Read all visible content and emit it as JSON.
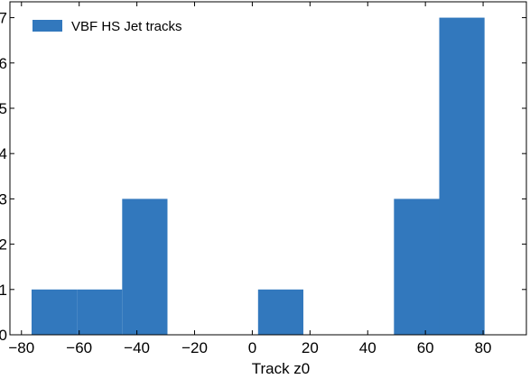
{
  "chart_data": {
    "type": "bar",
    "subtype": "histogram",
    "title": "",
    "xlabel": "Track z0",
    "ylabel": "",
    "bin_edges": [
      -76.5,
      -60.8,
      -45.1,
      -29.4,
      -13.7,
      2.0,
      17.7,
      33.4,
      49.1,
      64.8,
      80.5
    ],
    "series": [
      {
        "name": "VBF HS Jet tracks",
        "color": "#3278bd",
        "counts": [
          1,
          1,
          3,
          0,
          0,
          1,
          0,
          0,
          3,
          7
        ]
      }
    ],
    "xlim": [
      -84,
      95
    ],
    "ylim": [
      0,
      7.35
    ],
    "xticks": [
      -80,
      -60,
      -40,
      -20,
      0,
      20,
      40,
      60,
      80
    ],
    "xtick_labels": [
      "−80",
      "−60",
      "−40",
      "−20",
      "0",
      "20",
      "40",
      "60",
      "80"
    ],
    "yticks": [
      0,
      1,
      2,
      3,
      4,
      5,
      6,
      7
    ],
    "ytick_labels": [
      "0",
      "1",
      "2",
      "3",
      "4",
      "5",
      "6",
      "7"
    ],
    "grid": false,
    "legend_position": "top-left"
  }
}
